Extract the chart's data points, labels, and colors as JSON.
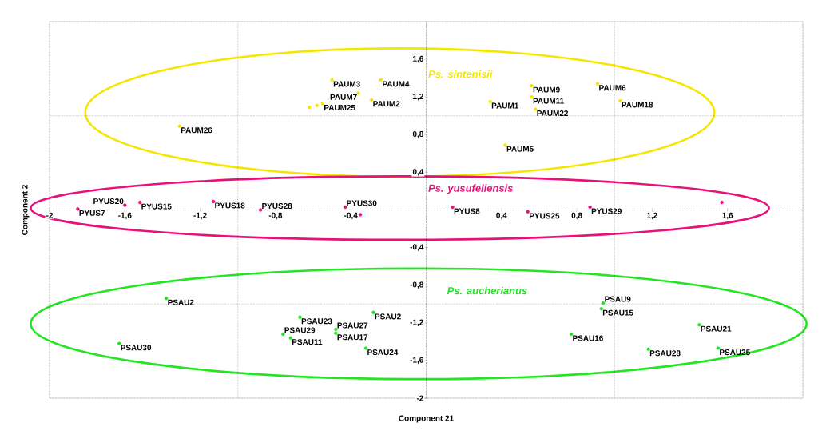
{
  "chart_data": {
    "type": "scatter",
    "xlabel": "Component 21",
    "ylabel": "Component 2",
    "xlim": [
      -2,
      2
    ],
    "ylim": [
      -2,
      2
    ],
    "xticks": [
      {
        "value": -2,
        "label": "-2"
      },
      {
        "value": -1.6,
        "label": "-1,6"
      },
      {
        "value": -1.2,
        "label": "-1,2"
      },
      {
        "value": -0.8,
        "label": "-0,8"
      },
      {
        "value": -0.4,
        "label": "-0,4"
      },
      {
        "value": 0.4,
        "label": "0,4"
      },
      {
        "value": 0.8,
        "label": "0,8"
      },
      {
        "value": 1.2,
        "label": "1,2"
      },
      {
        "value": 1.6,
        "label": "1,6"
      }
    ],
    "yticks": [
      {
        "value": -2,
        "label": "-2"
      },
      {
        "value": -1.6,
        "label": "-1,6"
      },
      {
        "value": -1.2,
        "label": "-1,2"
      },
      {
        "value": -0.8,
        "label": "-0,8"
      },
      {
        "value": -0.4,
        "label": "-0,4"
      },
      {
        "value": 0.4,
        "label": "0,4"
      },
      {
        "value": 0.8,
        "label": "0,8"
      },
      {
        "value": 1.2,
        "label": "1,2"
      },
      {
        "value": 1.6,
        "label": "1,6"
      }
    ],
    "grid": true,
    "series": [
      {
        "name": "Ps. sintenisii",
        "color": "#f5e600",
        "x": [
          -0.5,
          -0.24,
          -0.36,
          -0.29,
          -0.55,
          -0.58,
          -0.62,
          -1.31,
          0.56,
          0.56,
          0.34,
          0.58,
          0.91,
          1.03,
          0.42
        ],
        "values": [
          1.38,
          1.38,
          1.24,
          1.17,
          1.13,
          1.11,
          1.09,
          0.89,
          1.32,
          1.2,
          1.15,
          1.07,
          1.34,
          1.16,
          0.69
        ],
        "value_labels": [
          "PAUM3",
          "PAUM4",
          "PAUM7",
          "PAUM2",
          "PAUM25",
          null,
          null,
          "PAUM26",
          "PAUM9",
          "PAUM11",
          "PAUM1",
          "PAUM22",
          "PAUM6",
          "PAUM18",
          "PAUM5"
        ]
      },
      {
        "name": "Ps. yusufeliensis",
        "color": "#e8117a",
        "x": [
          -1.85,
          -1.6,
          -1.52,
          -1.13,
          -0.88,
          -0.43,
          -0.35,
          0.14,
          0.54,
          0.87,
          1.57
        ],
        "values": [
          0.01,
          0.05,
          0.08,
          0.09,
          0.0,
          0.03,
          -0.05,
          0.03,
          -0.02,
          0.03,
          0.08
        ],
        "value_labels": [
          "PYUS7",
          "PYUS20",
          "PYUS15",
          "PYUS18",
          "PYUS28",
          "PYUS30",
          null,
          "PYUS8",
          "PYUS25",
          "PYUS29",
          null
        ]
      },
      {
        "name": "Ps. aucherianus",
        "color": "#22e622",
        "x": [
          -1.38,
          -1.63,
          -0.67,
          -0.76,
          -0.72,
          -0.48,
          -0.48,
          -0.32,
          -0.28,
          0.94,
          0.93,
          0.77,
          1.18,
          1.45,
          1.55
        ],
        "values": [
          -0.94,
          -1.42,
          -1.14,
          -1.32,
          -1.36,
          -1.27,
          -1.31,
          -1.47,
          -1.09,
          -0.99,
          -1.05,
          -1.32,
          -1.48,
          -1.22,
          -1.47
        ],
        "value_labels": [
          "PSAU2",
          "PSAU30",
          "PSAU23",
          "PSAU29",
          "PSAU11",
          "PSAU27",
          "PSAU17",
          "PSAU24",
          "PSAU2",
          "PSAU9",
          "PSAU15",
          "PSAU16",
          "PSAU28",
          "PSAU21",
          "PSAU25"
        ]
      }
    ]
  }
}
